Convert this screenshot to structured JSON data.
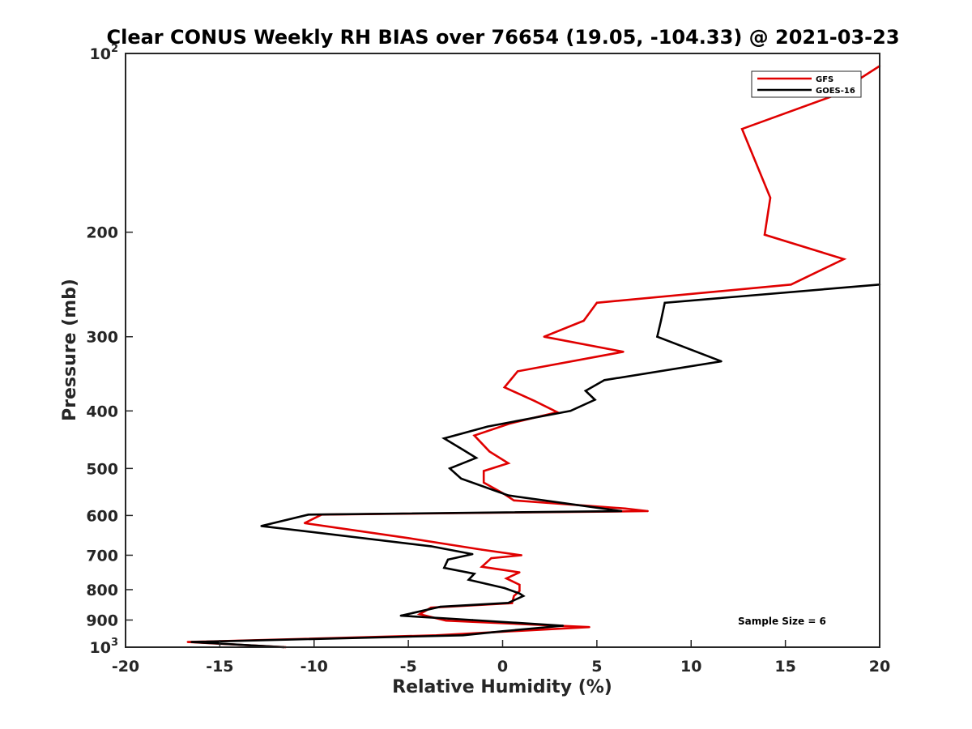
{
  "chart_data": {
    "type": "line",
    "title": "Clear CONUS Weekly RH BIAS over 76654 (19.05, -104.33) @ 2021-03-23",
    "xlabel": "Relative Humidity (%)",
    "ylabel": "Pressure (mb)",
    "xlim": [
      -20,
      20
    ],
    "ylim": [
      100,
      1000
    ],
    "y_scale": "log",
    "y_reversed": true,
    "grid": false,
    "legend_position": "top-right",
    "x_ticks": [
      -20,
      -15,
      -10,
      -5,
      0,
      5,
      10,
      15,
      20
    ],
    "x_tick_labels": [
      "-20",
      "-15",
      "-10",
      "-5",
      "0",
      "5",
      "10",
      "15",
      "20"
    ],
    "y_ticks": [
      100,
      200,
      300,
      400,
      500,
      600,
      700,
      800,
      900,
      1000
    ],
    "y_tick_labels": [
      {
        "base": "10",
        "exp": "2"
      },
      {
        "base": "200"
      },
      {
        "base": "300"
      },
      {
        "base": "400"
      },
      {
        "base": "500"
      },
      {
        "base": "600"
      },
      {
        "base": "700"
      },
      {
        "base": "800"
      },
      {
        "base": "900"
      },
      {
        "base": "10",
        "exp": "3"
      }
    ],
    "annotation": "Sample Size = 6",
    "series": [
      {
        "name": "GFS",
        "color": "#e00000",
        "points": [
          [
            20.0,
            105
          ],
          [
            17.5,
            118
          ],
          [
            12.7,
            134
          ],
          [
            14.2,
            175
          ],
          [
            13.9,
            202
          ],
          [
            18.1,
            222
          ],
          [
            15.3,
            245
          ],
          [
            5.0,
            263
          ],
          [
            4.3,
            282
          ],
          [
            2.2,
            300
          ],
          [
            6.4,
            318
          ],
          [
            0.8,
            343
          ],
          [
            0.1,
            365
          ],
          [
            1.7,
            385
          ],
          [
            2.9,
            402
          ],
          [
            0.4,
            420
          ],
          [
            -1.5,
            440
          ],
          [
            -0.7,
            468
          ],
          [
            0.3,
            490
          ],
          [
            -1.0,
            505
          ],
          [
            -1.0,
            528
          ],
          [
            0.0,
            550
          ],
          [
            0.6,
            566
          ],
          [
            6.5,
            584
          ],
          [
            7.7,
            590
          ],
          [
            -9.6,
            598
          ],
          [
            -10.5,
            618
          ],
          [
            -5.0,
            655
          ],
          [
            -1.1,
            685
          ],
          [
            1.0,
            700
          ],
          [
            -0.6,
            708
          ],
          [
            -1.1,
            732
          ],
          [
            0.9,
            748
          ],
          [
            0.2,
            766
          ],
          [
            0.9,
            785
          ],
          [
            0.9,
            804
          ],
          [
            0.6,
            820
          ],
          [
            0.5,
            843
          ],
          [
            -3.8,
            858
          ],
          [
            -4.4,
            880
          ],
          [
            -3.0,
            902
          ],
          [
            4.6,
            925
          ],
          [
            -3.5,
            955
          ],
          [
            -16.7,
            980
          ],
          [
            -11.5,
            1000
          ]
        ]
      },
      {
        "name": "GOES-16",
        "color": "#000000",
        "points": [
          [
            20.0,
            245
          ],
          [
            8.6,
            263
          ],
          [
            8.4,
            282
          ],
          [
            8.2,
            300
          ],
          [
            11.6,
            330
          ],
          [
            5.4,
            355
          ],
          [
            4.4,
            370
          ],
          [
            4.9,
            383
          ],
          [
            3.6,
            400
          ],
          [
            -0.8,
            425
          ],
          [
            -3.1,
            445
          ],
          [
            -2.1,
            465
          ],
          [
            -1.4,
            480
          ],
          [
            -2.8,
            500
          ],
          [
            -2.2,
            520
          ],
          [
            0.3,
            555
          ],
          [
            6.3,
            590
          ],
          [
            -10.3,
            598
          ],
          [
            -12.8,
            625
          ],
          [
            -3.8,
            676
          ],
          [
            -1.6,
            697
          ],
          [
            -2.9,
            712
          ],
          [
            -3.1,
            735
          ],
          [
            -1.5,
            752
          ],
          [
            -1.8,
            770
          ],
          [
            0.1,
            795
          ],
          [
            0.9,
            812
          ],
          [
            1.1,
            820
          ],
          [
            0.3,
            842
          ],
          [
            -3.3,
            855
          ],
          [
            -5.4,
            885
          ],
          [
            -1.6,
            900
          ],
          [
            3.2,
            920
          ],
          [
            0.0,
            940
          ],
          [
            -2.1,
            955
          ],
          [
            -16.5,
            980
          ],
          [
            -11.6,
            1000
          ]
        ]
      }
    ]
  }
}
